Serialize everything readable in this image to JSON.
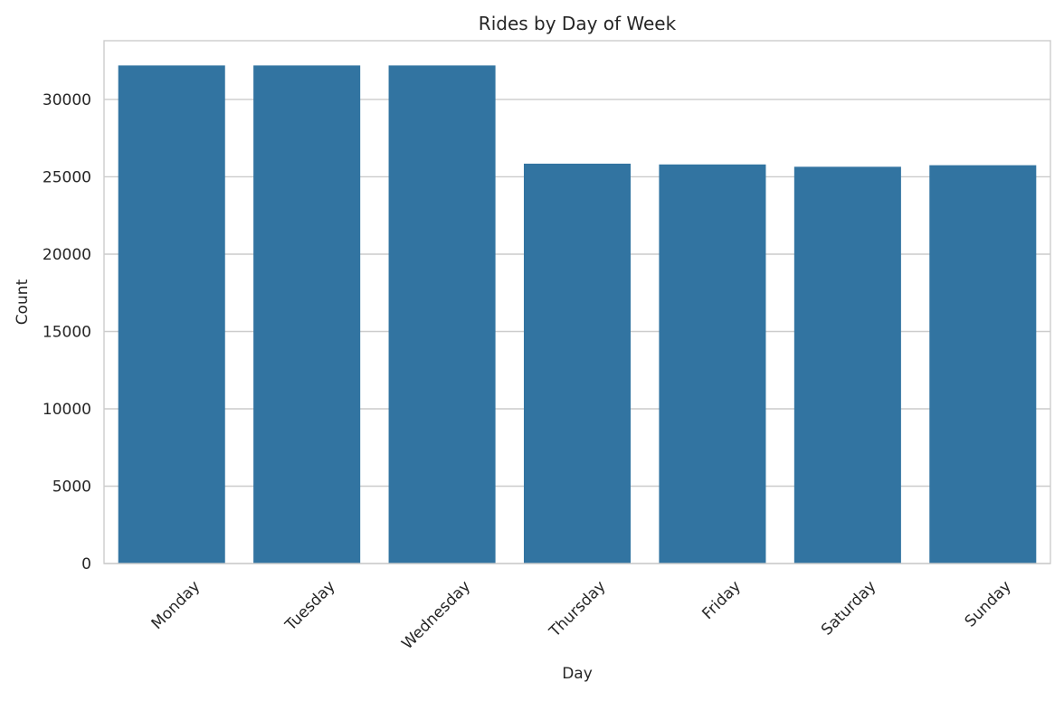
{
  "chart_data": {
    "type": "bar",
    "title": "Rides by Day of Week",
    "xlabel": "Day",
    "ylabel": "Count",
    "categories": [
      "Monday",
      "Tuesday",
      "Wednesday",
      "Thursday",
      "Friday",
      "Saturday",
      "Sunday"
    ],
    "values": [
      32200,
      32200,
      32200,
      25850,
      25800,
      25650,
      25750
    ],
    "ylim": [
      0,
      33800
    ],
    "yticks": [
      0,
      5000,
      10000,
      15000,
      20000,
      25000,
      30000
    ],
    "grid": "horizontal",
    "legend": "none",
    "colors": {
      "bar": "#3274a1",
      "grid": "#cccccc",
      "text": "#262626"
    }
  }
}
